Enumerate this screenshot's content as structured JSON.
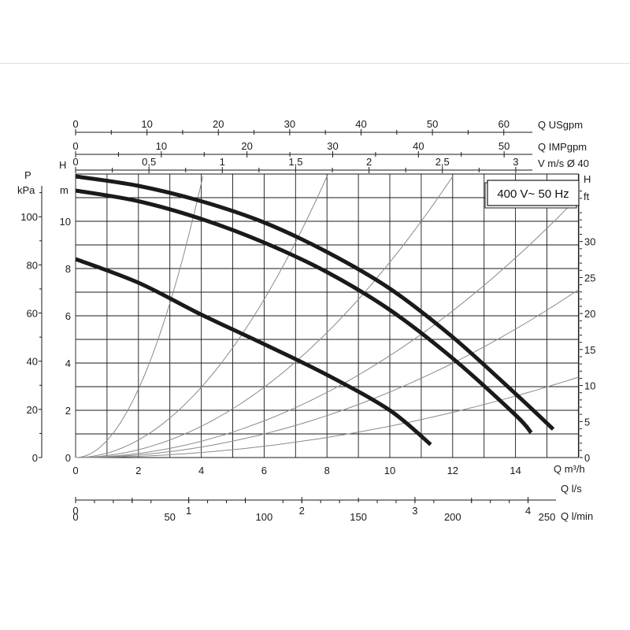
{
  "chart_data": {
    "type": "line",
    "title": "",
    "badge": "400 V~ 50 Hz",
    "x": {
      "label": "Q m³/h",
      "range": [
        0,
        16
      ],
      "ticks": [
        "0",
        "2",
        "4",
        "6",
        "8",
        "10",
        "12",
        "14"
      ]
    },
    "y": {
      "label_top": "H",
      "label_unit": "m",
      "range": [
        0,
        12
      ],
      "ticks": [
        "0",
        "2",
        "4",
        "6",
        "8",
        "10"
      ]
    },
    "secondary_axes": {
      "kpa": {
        "label_top": "P",
        "label_unit": "kPa",
        "ticks": [
          "0",
          "20",
          "40",
          "60",
          "80",
          "100"
        ]
      },
      "ft": {
        "label_top": "H",
        "label_unit": "ft",
        "ticks": [
          "0",
          "5",
          "10",
          "15",
          "20",
          "25",
          "30"
        ]
      },
      "usgpm": {
        "label": "Q USgpm",
        "ticks": [
          "0",
          "10",
          "20",
          "30",
          "40",
          "50",
          "60"
        ]
      },
      "impgpm": {
        "label": "Q IMPgpm",
        "ticks": [
          "0",
          "10",
          "20",
          "30",
          "40",
          "50"
        ]
      },
      "velocity": {
        "label": "V m/s Ø 40",
        "ticks": [
          "0",
          "0,5",
          "1",
          "1,5",
          "2",
          "2,5",
          "3"
        ]
      },
      "ls": {
        "label": "Q l/s",
        "ticks": [
          "0",
          "1",
          "2",
          "3",
          "4"
        ]
      },
      "lmin": {
        "label": "Q l/min",
        "ticks": [
          "0",
          "50",
          "100",
          "150",
          "200",
          "250"
        ]
      }
    },
    "series": [
      {
        "x": [
          0,
          2,
          4,
          6,
          8,
          10,
          12,
          14,
          15.2
        ],
        "values": [
          11.9,
          11.5,
          10.85,
          9.95,
          8.7,
          7.15,
          5.1,
          2.7,
          1.2
        ]
      },
      {
        "x": [
          0,
          2,
          4,
          6,
          8,
          10,
          12,
          14,
          14.5
        ],
        "values": [
          11.3,
          10.85,
          10.1,
          9.1,
          7.85,
          6.25,
          4.2,
          1.8,
          1.05
        ]
      },
      {
        "x": [
          0,
          2,
          4,
          6,
          8,
          10,
          11.3
        ],
        "values": [
          8.4,
          7.4,
          6.05,
          4.8,
          3.5,
          2.0,
          0.55
        ]
      }
    ],
    "system_curves": [
      {
        "values": [
          0,
          2,
          4,
          6,
          8,
          10,
          12
        ]
      },
      {
        "values": [
          0,
          2,
          4,
          6,
          8,
          10,
          12
        ]
      },
      {
        "values": [
          0,
          2,
          4,
          6,
          8,
          10,
          12
        ]
      },
      {
        "values": [
          0,
          2,
          4,
          6,
          8,
          10,
          11
        ]
      },
      {
        "values": [
          0,
          2,
          4,
          6,
          7.1
        ]
      },
      {
        "values": [
          0,
          2,
          3.4
        ]
      }
    ],
    "grid": true
  }
}
